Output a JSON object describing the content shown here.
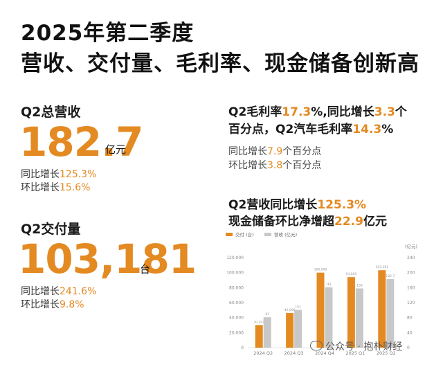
{
  "headline": {
    "line1": "2025年第二季度",
    "line2": "营收、交付量、毛利率、现金储备创新高"
  },
  "revenue": {
    "label": "Q2总营收",
    "value": "182.7",
    "unit": "亿元",
    "yoy_label": "同比增长",
    "yoy_value": "125.3%",
    "qoq_label": "环比增长",
    "qoq_value": "15.6%"
  },
  "deliveries": {
    "label": "Q2交付量",
    "value": "103,181",
    "unit": "台",
    "yoy_label": "同比增长",
    "yoy_value": "241.6%",
    "qoq_label": "环比增长",
    "qoq_value": "9.8%"
  },
  "margin": {
    "p1": "Q2毛利率",
    "v1": "17.3",
    "p2": "%,同比增长",
    "v2": "3.3",
    "p3": "个",
    "p4": "百分点，Q2汽车毛利率",
    "v3": "14.3",
    "p5": "%",
    "s1a": "同比增长",
    "s1v": "7.9",
    "s1b": "个百分点",
    "s2a": "环比增长",
    "s2v": "3.8",
    "s2b": "个百分点"
  },
  "growth": {
    "l1a": "Q2营收同比增长",
    "l1v": "125.3%",
    "l2a": "现金储备环比净增超",
    "l2v": "22.9",
    "l2b": "亿元"
  },
  "colors": {
    "accent": "#e48a22",
    "bar_deliveries": "#e48a22",
    "bar_revenue": "#c8c8c8"
  },
  "chart_data": {
    "type": "bar",
    "categories": [
      "2024 Q2",
      "2024 Q3",
      "2024 Q4",
      "2025 Q1",
      "2025 Q2"
    ],
    "series": [
      {
        "name": "交付 (台)",
        "axis": "left",
        "values": [
          30207,
          46096,
          100000,
          94000,
          103181
        ]
      },
      {
        "name": "营收 (亿元)",
        "axis": "right",
        "values": [
          81,
          101,
          161,
          158,
          182.7
        ]
      }
    ],
    "left_axis": {
      "ticks": [
        "0",
        "20,000",
        "40,000",
        "60,000",
        "80,000",
        "100,000",
        "120,000"
      ],
      "ylim": [
        0,
        120000
      ]
    },
    "right_axis": {
      "label": "(亿元)",
      "ticks": [
        "0",
        "40",
        "80",
        "120",
        "160",
        "200",
        "240"
      ],
      "ylim": [
        0,
        240
      ]
    },
    "legend_position": "top-left",
    "grid": false
  },
  "watermark": "公众号 · 抱朴财经"
}
